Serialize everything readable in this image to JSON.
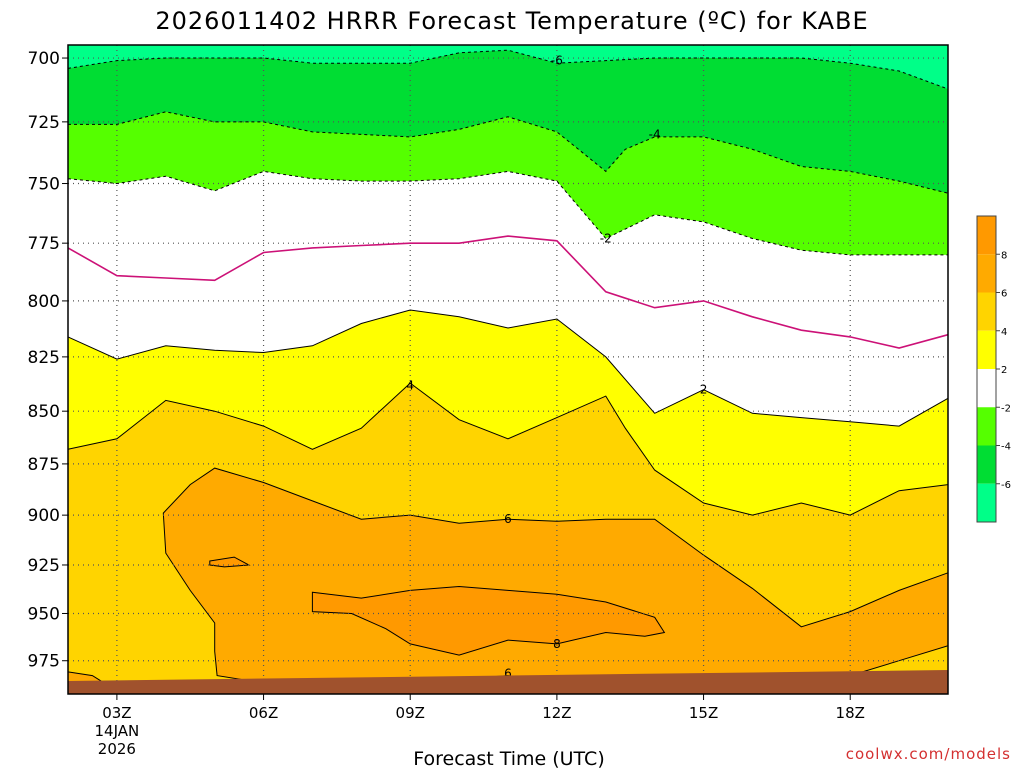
{
  "chart_data": {
    "type": "contour",
    "title": "2026011402 HRRR Forecast Temperature (ºC) for KABE",
    "xlabel": "Forecast Time (UTC)",
    "ylabel": "",
    "credit": "coolwx.com/models",
    "x_ticks": [
      "03Z",
      "06Z",
      "09Z",
      "12Z",
      "15Z",
      "18Z"
    ],
    "x_tick_hours": [
      3,
      6,
      9,
      12,
      15,
      18
    ],
    "x_date_line1": "14JAN",
    "x_date_line2": "2026",
    "xlim_hours": [
      2,
      20
    ],
    "y_ticks": [
      700,
      725,
      750,
      775,
      800,
      825,
      850,
      875,
      900,
      925,
      950,
      975
    ],
    "ylim_hpa": [
      695,
      993
    ],
    "y_scale": "log-pressure (inverted)",
    "grid": "dotted",
    "contour_levels": [
      -6,
      -4,
      -2,
      2,
      4,
      6,
      8
    ],
    "contour_labels": [
      "-6",
      "-4",
      "-2",
      "2",
      "4",
      "6",
      "8"
    ],
    "colorbar": {
      "placement": "right",
      "labels": [
        "8",
        "6",
        "4",
        "2",
        "-2",
        "-4",
        "-6"
      ],
      "bands": [
        {
          "lo": 8,
          "hi": 10,
          "color": "#ff9900"
        },
        {
          "lo": 6,
          "hi": 8,
          "color": "#ffaa00"
        },
        {
          "lo": 4,
          "hi": 6,
          "color": "#ffd400"
        },
        {
          "lo": 2,
          "hi": 4,
          "color": "#ffff00"
        },
        {
          "lo": -2,
          "hi": 2,
          "color": "#ffffff"
        },
        {
          "lo": -4,
          "hi": -2,
          "color": "#55ff00"
        },
        {
          "lo": -6,
          "hi": -4,
          "color": "#00dd33"
        },
        {
          "lo": -8,
          "hi": -6,
          "color": "#00ff88"
        }
      ]
    },
    "ground_color": "#a0522d",
    "contours": [
      {
        "level": -6,
        "label": "-6",
        "label_at": [
          12.0,
          701
        ],
        "points": [
          [
            2,
            704
          ],
          [
            3,
            701
          ],
          [
            4,
            700
          ],
          [
            5,
            700
          ],
          [
            6,
            700
          ],
          [
            7,
            702
          ],
          [
            8,
            702
          ],
          [
            9,
            702
          ],
          [
            10,
            698
          ],
          [
            11,
            697
          ],
          [
            12,
            702
          ],
          [
            13,
            701
          ],
          [
            14,
            700
          ],
          [
            15,
            700
          ],
          [
            16,
            700
          ],
          [
            17,
            700
          ],
          [
            18,
            702
          ],
          [
            19,
            705
          ],
          [
            20,
            712
          ]
        ]
      },
      {
        "level": -4,
        "label": "-4",
        "label_at": [
          14.0,
          730
        ],
        "points": [
          [
            2,
            726
          ],
          [
            3,
            726
          ],
          [
            4,
            721
          ],
          [
            5,
            725
          ],
          [
            6,
            725
          ],
          [
            7,
            729
          ],
          [
            8,
            730
          ],
          [
            9,
            731
          ],
          [
            10,
            728
          ],
          [
            11,
            723
          ],
          [
            12,
            729
          ],
          [
            13,
            745
          ],
          [
            13.4,
            736
          ],
          [
            14,
            731
          ],
          [
            15,
            731
          ],
          [
            16,
            736
          ],
          [
            17,
            743
          ],
          [
            18,
            745
          ],
          [
            19,
            749
          ],
          [
            20,
            754
          ]
        ]
      },
      {
        "level": -2,
        "label": "-2",
        "label_at": [
          13.0,
          773
        ],
        "points": [
          [
            2,
            748
          ],
          [
            3,
            750
          ],
          [
            4,
            747
          ],
          [
            5,
            753
          ],
          [
            6,
            745
          ],
          [
            7,
            748
          ],
          [
            8,
            749
          ],
          [
            9,
            749
          ],
          [
            10,
            748
          ],
          [
            11,
            745
          ],
          [
            12,
            749
          ],
          [
            13,
            773
          ],
          [
            14,
            763
          ],
          [
            15,
            766
          ],
          [
            16,
            773
          ],
          [
            17,
            778
          ],
          [
            18,
            780
          ],
          [
            19,
            780
          ],
          [
            20,
            780
          ]
        ]
      },
      {
        "level": 2,
        "label": "2",
        "label_at": [
          15.0,
          840
        ],
        "points": [
          [
            2,
            816
          ],
          [
            3,
            826
          ],
          [
            4,
            820
          ],
          [
            5,
            822
          ],
          [
            6,
            823
          ],
          [
            7,
            820
          ],
          [
            8,
            810
          ],
          [
            9,
            804
          ],
          [
            10,
            807
          ],
          [
            11,
            812
          ],
          [
            12,
            808
          ],
          [
            13,
            825
          ],
          [
            14,
            851
          ],
          [
            15,
            840
          ],
          [
            16,
            851
          ],
          [
            17,
            853
          ],
          [
            18,
            855
          ],
          [
            19,
            857
          ],
          [
            20,
            844
          ]
        ]
      },
      {
        "level": 4,
        "label": "4",
        "label_at": [
          9.0,
          838
        ],
        "points": [
          [
            2,
            868
          ],
          [
            3,
            863
          ],
          [
            4,
            845
          ],
          [
            5,
            850
          ],
          [
            6,
            857
          ],
          [
            7,
            868
          ],
          [
            8,
            858
          ],
          [
            9,
            837
          ],
          [
            10,
            854
          ],
          [
            11,
            863
          ],
          [
            12,
            853
          ],
          [
            13,
            843
          ],
          [
            13.4,
            858
          ],
          [
            14,
            878
          ],
          [
            15,
            894
          ],
          [
            16,
            900
          ],
          [
            17,
            894
          ],
          [
            18,
            900
          ],
          [
            19,
            888
          ],
          [
            20,
            885
          ]
        ]
      }
    ],
    "lines": [
      {
        "level": -2.5,
        "color": "#cc1177",
        "dashed": false,
        "points": [
          [
            2,
            777
          ],
          [
            3,
            789
          ],
          [
            4,
            790
          ],
          [
            5,
            791
          ],
          [
            6,
            779
          ],
          [
            7,
            777
          ],
          [
            8,
            776
          ],
          [
            9,
            775
          ],
          [
            10,
            775
          ],
          [
            11,
            772
          ],
          [
            12,
            774
          ],
          [
            13,
            796
          ],
          [
            14,
            803
          ],
          [
            15,
            800
          ],
          [
            16,
            807
          ],
          [
            17,
            813
          ],
          [
            18,
            816
          ],
          [
            19,
            821
          ],
          [
            20,
            815
          ]
        ]
      }
    ],
    "regions": [
      {
        "level": 6,
        "label": "6",
        "label_at": [
          11.0,
          902
        ],
        "points": [
          [
            3.95,
            899
          ],
          [
            4.5,
            885
          ],
          [
            5,
            877
          ],
          [
            6,
            884
          ],
          [
            7,
            893
          ],
          [
            8,
            902
          ],
          [
            9,
            900
          ],
          [
            10,
            904
          ],
          [
            11,
            902
          ],
          [
            12,
            903
          ],
          [
            13,
            902
          ],
          [
            14,
            902
          ],
          [
            15,
            920
          ],
          [
            16,
            937
          ],
          [
            17,
            957
          ],
          [
            18,
            949
          ],
          [
            19,
            938
          ],
          [
            20,
            929
          ],
          [
            20,
            967
          ],
          [
            19,
            975
          ],
          [
            18,
            983
          ],
          [
            17,
            990
          ],
          [
            16,
            991
          ],
          [
            15,
            991
          ],
          [
            14,
            991
          ],
          [
            13.9,
            986
          ],
          [
            13,
            983
          ],
          [
            12,
            987
          ],
          [
            11,
            983
          ],
          [
            10,
            985
          ],
          [
            9,
            985
          ],
          [
            8,
            986
          ],
          [
            7,
            987
          ],
          [
            6,
            987
          ],
          [
            5.05,
            983
          ],
          [
            5,
            970
          ],
          [
            5,
            955
          ],
          [
            4.5,
            938
          ],
          [
            4,
            919
          ]
        ]
      },
      {
        "level": 8,
        "label": "8",
        "label_at": [
          12.0,
          966
        ],
        "points": [
          [
            7,
            939
          ],
          [
            8,
            942
          ],
          [
            9,
            938
          ],
          [
            10,
            936
          ],
          [
            11,
            938
          ],
          [
            12,
            940
          ],
          [
            13,
            944
          ],
          [
            14,
            952
          ],
          [
            14.2,
            960
          ],
          [
            13.8,
            962
          ],
          [
            13,
            960
          ],
          [
            12,
            966
          ],
          [
            11,
            964
          ],
          [
            10,
            972
          ],
          [
            9,
            966
          ],
          [
            8.5,
            958
          ],
          [
            7.8,
            950
          ],
          [
            7,
            949
          ]
        ]
      },
      {
        "level": 8,
        "label": "",
        "label_at": [
          0,
          0
        ],
        "points": [
          [
            4.9,
            923
          ],
          [
            5.4,
            921
          ],
          [
            5.7,
            925
          ],
          [
            5.2,
            926
          ],
          [
            4.9,
            925
          ]
        ]
      },
      {
        "level": 6,
        "label": "6",
        "label_at": [
          11.0,
          982
        ],
        "points": [
          [
            2,
            981
          ],
          [
            2.5,
            983
          ],
          [
            2.8,
            988
          ],
          [
            2,
            988
          ]
        ]
      }
    ]
  }
}
